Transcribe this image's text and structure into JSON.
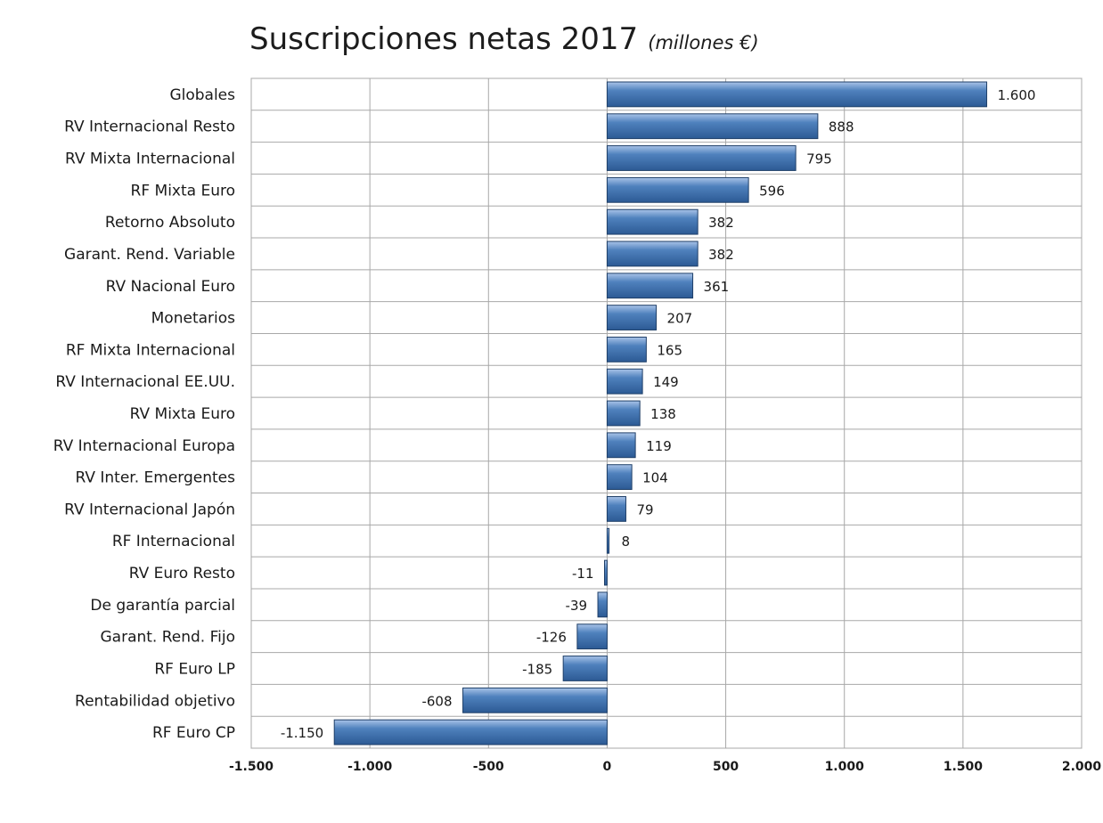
{
  "chart_data": {
    "type": "bar",
    "orientation": "horizontal",
    "title": "Suscripciones netas 2017",
    "title_suffix": "(millones €)",
    "xlabel": "",
    "ylabel": "",
    "xlim": [
      -1500,
      2000
    ],
    "x_ticks": [
      -1500,
      -1000,
      -500,
      0,
      500,
      1000,
      1500,
      2000
    ],
    "x_tick_labels": [
      "-1.500",
      "-1.000",
      "-500",
      "0",
      "500",
      "1.000",
      "1.500",
      "2.000"
    ],
    "grid": true,
    "legend": "none",
    "bar_color": "#4f81bd",
    "categories": [
      "Globales",
      "RV Internacional Resto",
      "RV Mixta Internacional",
      "RF Mixta Euro",
      "Retorno Absoluto",
      "Garant. Rend. Variable",
      "RV Nacional Euro",
      "Monetarios",
      "RF Mixta Internacional",
      "RV Internacional EE.UU.",
      "RV Mixta Euro",
      "RV Internacional Europa",
      "RV Inter. Emergentes",
      "RV Internacional Japón",
      "RF Internacional",
      "RV Euro Resto",
      "De garantía parcial",
      "Garant. Rend. Fijo",
      "RF Euro LP",
      "Rentabilidad objetivo",
      "RF Euro CP"
    ],
    "values": [
      1600,
      888,
      795,
      596,
      382,
      382,
      361,
      207,
      165,
      149,
      138,
      119,
      104,
      79,
      8,
      -11,
      -39,
      -126,
      -185,
      -608,
      -1150
    ],
    "data_labels": [
      "1.600",
      "888",
      "795",
      "596",
      "382",
      "382",
      "361",
      "207",
      "165",
      "149",
      "138",
      "119",
      "104",
      "79",
      "8",
      "-11",
      "-39",
      "-126",
      "-185",
      "-608",
      "-1.150"
    ]
  }
}
